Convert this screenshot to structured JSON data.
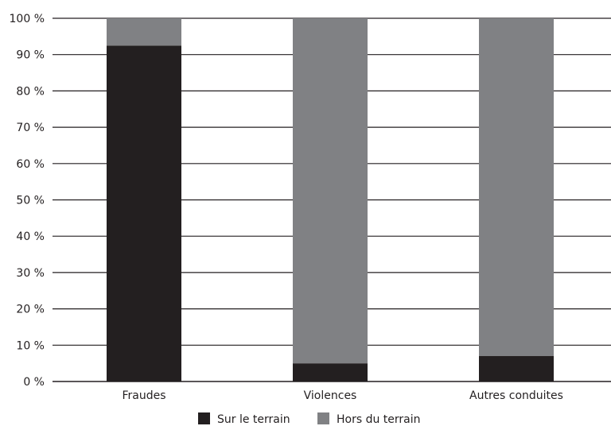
{
  "chart_data": {
    "type": "bar",
    "stacked": true,
    "categories": [
      "Fraudes",
      "Violences",
      "Autres conduites"
    ],
    "series": [
      {
        "name": "Sur le terrain",
        "values": [
          92.5,
          5,
          7
        ],
        "color": "#231f20"
      },
      {
        "name": "Hors du terrain",
        "values": [
          7.5,
          95,
          93
        ],
        "color": "#808184"
      }
    ],
    "ylim": [
      0,
      100
    ],
    "y_ticks": [
      {
        "value": 0,
        "label": "0 %"
      },
      {
        "value": 10,
        "label": "10 %"
      },
      {
        "value": 20,
        "label": "20 %"
      },
      {
        "value": 30,
        "label": "30 %"
      },
      {
        "value": 40,
        "label": "40 %"
      },
      {
        "value": 50,
        "label": "50 %"
      },
      {
        "value": 60,
        "label": "60 %"
      },
      {
        "value": 70,
        "label": "70 %"
      },
      {
        "value": 80,
        "label": "80 %"
      },
      {
        "value": 90,
        "label": "90 %"
      },
      {
        "value": 100,
        "label": "100 %"
      }
    ],
    "grid": true,
    "legend": "bottom-center"
  }
}
